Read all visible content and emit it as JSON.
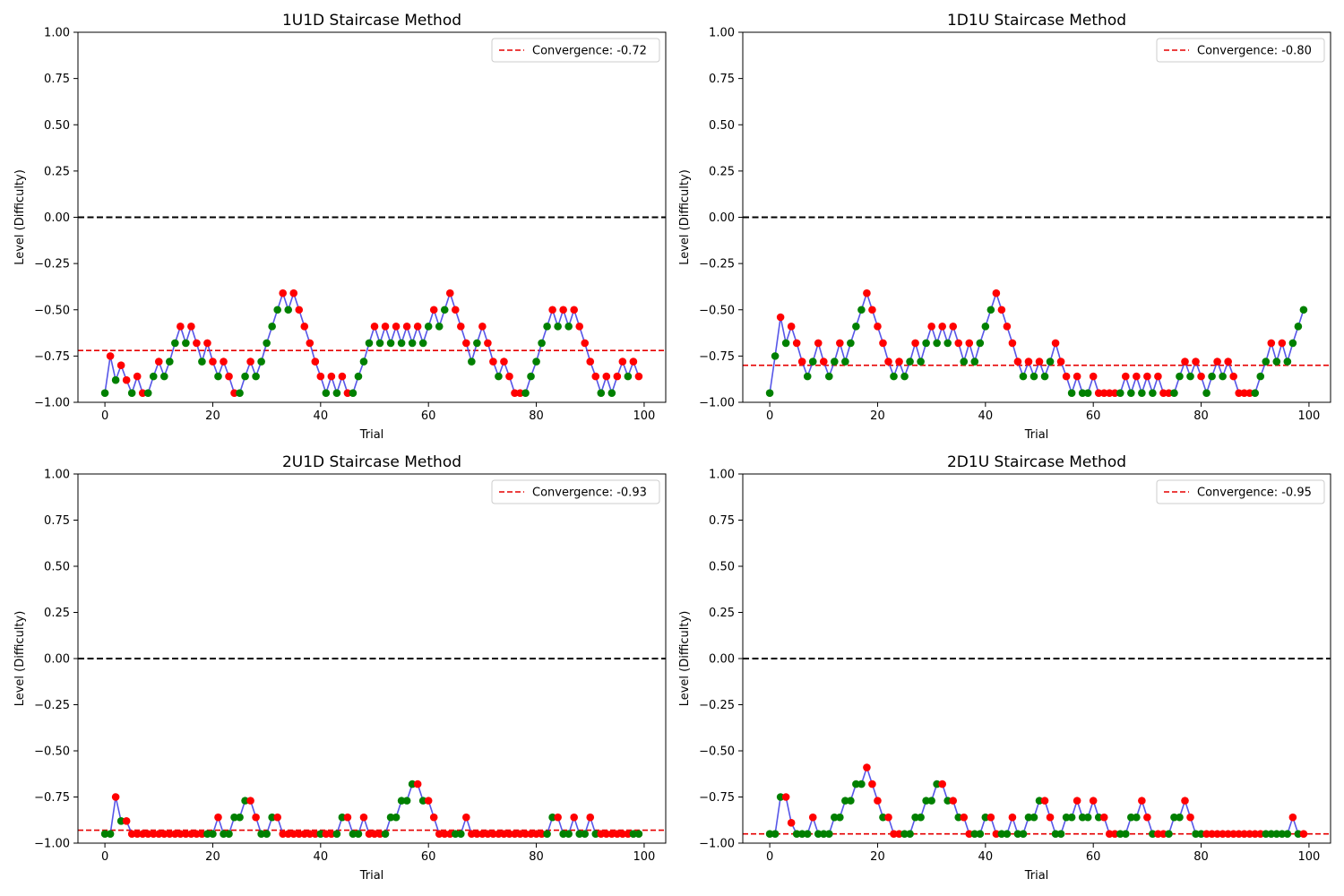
{
  "colors": {
    "line": "#4444e6",
    "correct": "#008000",
    "incorrect": "#ff0000",
    "convergence": "#e60000",
    "reference": "#000000"
  },
  "chart_data": [
    {
      "type": "line",
      "title": "1U1D Staircase Method",
      "xlabel": "Trial",
      "ylabel": "Level (Difficulty)",
      "xlim": [
        -5,
        104
      ],
      "ylim": [
        -1.0,
        1.0
      ],
      "xticks": [
        0,
        20,
        40,
        60,
        80,
        100
      ],
      "yticks": [
        -1.0,
        -0.75,
        -0.5,
        -0.25,
        0.0,
        0.25,
        0.5,
        0.75,
        1.0
      ],
      "reference_y": 0.0,
      "convergence": -0.72,
      "legend_label": "Convergence: -0.72",
      "legend_loc": "upper right",
      "y": [
        -0.95,
        -0.75,
        -0.88,
        -0.8,
        -0.88,
        -0.95,
        -0.86,
        -0.95,
        -0.95,
        -0.86,
        -0.78,
        -0.86,
        -0.78,
        -0.68,
        -0.59,
        -0.68,
        -0.59,
        -0.68,
        -0.78,
        -0.68,
        -0.78,
        -0.86,
        -0.78,
        -0.86,
        -0.95,
        -0.95,
        -0.86,
        -0.78,
        -0.86,
        -0.78,
        -0.68,
        -0.59,
        -0.5,
        -0.41,
        -0.5,
        -0.41,
        -0.5,
        -0.59,
        -0.68,
        -0.78,
        -0.86,
        -0.95,
        -0.86,
        -0.95,
        -0.86,
        -0.95,
        -0.95,
        -0.86,
        -0.78,
        -0.68,
        -0.59,
        -0.68,
        -0.59,
        -0.68,
        -0.59,
        -0.68,
        -0.59,
        -0.68,
        -0.59,
        -0.68,
        -0.59,
        -0.5,
        -0.59,
        -0.5,
        -0.41,
        -0.5,
        -0.59,
        -0.68,
        -0.78,
        -0.68,
        -0.59,
        -0.68,
        -0.78,
        -0.86,
        -0.78,
        -0.86,
        -0.95,
        -0.95,
        -0.95,
        -0.86,
        -0.78,
        -0.68,
        -0.59,
        -0.5,
        -0.59,
        -0.5,
        -0.59,
        -0.5,
        -0.59,
        -0.68,
        -0.78,
        -0.86,
        -0.95,
        -0.86,
        -0.95,
        -0.86,
        -0.78,
        -0.86,
        -0.78,
        -0.86
      ],
      "outcome": [
        "c",
        "i",
        "c",
        "i",
        "i",
        "c",
        "i",
        "i",
        "c",
        "c",
        "i",
        "c",
        "c",
        "c",
        "i",
        "c",
        "i",
        "i",
        "c",
        "i",
        "i",
        "c",
        "i",
        "i",
        "i",
        "c",
        "c",
        "i",
        "c",
        "c",
        "c",
        "c",
        "c",
        "i",
        "c",
        "i",
        "i",
        "i",
        "i",
        "i",
        "i",
        "c",
        "i",
        "c",
        "i",
        "i",
        "c",
        "c",
        "c",
        "c",
        "i",
        "c",
        "i",
        "c",
        "i",
        "c",
        "i",
        "c",
        "i",
        "c",
        "c",
        "i",
        "c",
        "c",
        "i",
        "i",
        "i",
        "i",
        "c",
        "c",
        "i",
        "i",
        "i",
        "c",
        "i",
        "i",
        "i",
        "i",
        "c",
        "c",
        "c",
        "c",
        "c",
        "i",
        "c",
        "i",
        "c",
        "i",
        "i",
        "i",
        "i",
        "i",
        "c",
        "i",
        "c",
        "i",
        "i",
        "c",
        "i",
        "i"
      ]
    },
    {
      "type": "line",
      "title": "1D1U Staircase Method",
      "xlabel": "Trial",
      "ylabel": "Level (Difficulty)",
      "xlim": [
        -5,
        104
      ],
      "ylim": [
        -1.0,
        1.0
      ],
      "xticks": [
        0,
        20,
        40,
        60,
        80,
        100
      ],
      "yticks": [
        -1.0,
        -0.75,
        -0.5,
        -0.25,
        0.0,
        0.25,
        0.5,
        0.75,
        1.0
      ],
      "reference_y": 0.0,
      "convergence": -0.8,
      "legend_label": "Convergence: -0.80",
      "legend_loc": "upper right",
      "y": [
        -0.95,
        -0.75,
        -0.54,
        -0.68,
        -0.59,
        -0.68,
        -0.78,
        -0.86,
        -0.78,
        -0.68,
        -0.78,
        -0.86,
        -0.78,
        -0.68,
        -0.78,
        -0.68,
        -0.59,
        -0.5,
        -0.41,
        -0.5,
        -0.59,
        -0.68,
        -0.78,
        -0.86,
        -0.78,
        -0.86,
        -0.78,
        -0.68,
        -0.78,
        -0.68,
        -0.59,
        -0.68,
        -0.59,
        -0.68,
        -0.59,
        -0.68,
        -0.78,
        -0.68,
        -0.78,
        -0.68,
        -0.59,
        -0.5,
        -0.41,
        -0.5,
        -0.59,
        -0.68,
        -0.78,
        -0.86,
        -0.78,
        -0.86,
        -0.78,
        -0.86,
        -0.78,
        -0.68,
        -0.78,
        -0.86,
        -0.95,
        -0.86,
        -0.95,
        -0.95,
        -0.86,
        -0.95,
        -0.95,
        -0.95,
        -0.95,
        -0.95,
        -0.86,
        -0.95,
        -0.86,
        -0.95,
        -0.86,
        -0.95,
        -0.86,
        -0.95,
        -0.95,
        -0.95,
        -0.86,
        -0.78,
        -0.86,
        -0.78,
        -0.86,
        -0.95,
        -0.86,
        -0.78,
        -0.86,
        -0.78,
        -0.86,
        -0.95,
        -0.95,
        -0.95,
        -0.95,
        -0.86,
        -0.78,
        -0.68,
        -0.78,
        -0.68,
        -0.78,
        -0.68,
        -0.59,
        -0.5
      ],
      "outcome": [
        "c",
        "c",
        "i",
        "c",
        "i",
        "i",
        "i",
        "c",
        "c",
        "i",
        "i",
        "c",
        "c",
        "i",
        "c",
        "c",
        "c",
        "c",
        "i",
        "i",
        "i",
        "i",
        "i",
        "c",
        "i",
        "c",
        "c",
        "i",
        "c",
        "c",
        "i",
        "c",
        "i",
        "c",
        "i",
        "i",
        "c",
        "i",
        "c",
        "c",
        "c",
        "c",
        "i",
        "i",
        "i",
        "i",
        "i",
        "c",
        "i",
        "c",
        "i",
        "c",
        "c",
        "i",
        "i",
        "i",
        "c",
        "i",
        "c",
        "c",
        "i",
        "i",
        "i",
        "i",
        "i",
        "c",
        "i",
        "c",
        "i",
        "c",
        "i",
        "c",
        "i",
        "i",
        "i",
        "c",
        "c",
        "i",
        "c",
        "i",
        "i",
        "c",
        "c",
        "i",
        "c",
        "i",
        "i",
        "i",
        "i",
        "i",
        "c",
        "c",
        "c",
        "i",
        "c",
        "i",
        "c",
        "c",
        "c",
        "c"
      ]
    },
    {
      "type": "line",
      "title": "2U1D Staircase Method",
      "xlabel": "Trial",
      "ylabel": "Level (Difficulty)",
      "xlim": [
        -5,
        104
      ],
      "ylim": [
        -1.0,
        1.0
      ],
      "xticks": [
        0,
        20,
        40,
        60,
        80,
        100
      ],
      "yticks": [
        -1.0,
        -0.75,
        -0.5,
        -0.25,
        0.0,
        0.25,
        0.5,
        0.75,
        1.0
      ],
      "reference_y": 0.0,
      "convergence": -0.93,
      "legend_label": "Convergence: -0.93",
      "legend_loc": "upper right",
      "y": [
        -0.95,
        -0.95,
        -0.75,
        -0.88,
        -0.88,
        -0.95,
        -0.95,
        -0.95,
        -0.95,
        -0.95,
        -0.95,
        -0.95,
        -0.95,
        -0.95,
        -0.95,
        -0.95,
        -0.95,
        -0.95,
        -0.95,
        -0.95,
        -0.95,
        -0.86,
        -0.95,
        -0.95,
        -0.86,
        -0.86,
        -0.77,
        -0.77,
        -0.86,
        -0.95,
        -0.95,
        -0.86,
        -0.86,
        -0.95,
        -0.95,
        -0.95,
        -0.95,
        -0.95,
        -0.95,
        -0.95,
        -0.95,
        -0.95,
        -0.95,
        -0.95,
        -0.86,
        -0.86,
        -0.95,
        -0.95,
        -0.86,
        -0.95,
        -0.95,
        -0.95,
        -0.95,
        -0.86,
        -0.86,
        -0.77,
        -0.77,
        -0.68,
        -0.68,
        -0.77,
        -0.77,
        -0.86,
        -0.95,
        -0.95,
        -0.95,
        -0.95,
        -0.95,
        -0.86,
        -0.95,
        -0.95,
        -0.95,
        -0.95,
        -0.95,
        -0.95,
        -0.95,
        -0.95,
        -0.95,
        -0.95,
        -0.95,
        -0.95,
        -0.95,
        -0.95,
        -0.95,
        -0.86,
        -0.86,
        -0.95,
        -0.95,
        -0.86,
        -0.95,
        -0.95,
        -0.86,
        -0.95,
        -0.95,
        -0.95,
        -0.95,
        -0.95,
        -0.95,
        -0.95,
        -0.95,
        -0.95
      ],
      "outcome": [
        "c",
        "c",
        "i",
        "c",
        "i",
        "i",
        "i",
        "i",
        "i",
        "i",
        "i",
        "i",
        "i",
        "i",
        "i",
        "i",
        "i",
        "i",
        "i",
        "c",
        "c",
        "i",
        "c",
        "c",
        "c",
        "c",
        "c",
        "i",
        "i",
        "c",
        "c",
        "c",
        "i",
        "i",
        "i",
        "i",
        "i",
        "i",
        "i",
        "i",
        "c",
        "i",
        "i",
        "c",
        "c",
        "i",
        "c",
        "c",
        "i",
        "i",
        "i",
        "i",
        "c",
        "c",
        "c",
        "c",
        "c",
        "c",
        "i",
        "c",
        "i",
        "i",
        "i",
        "i",
        "i",
        "c",
        "c",
        "i",
        "i",
        "i",
        "i",
        "i",
        "i",
        "i",
        "i",
        "i",
        "i",
        "i",
        "i",
        "i",
        "i",
        "i",
        "c",
        "c",
        "i",
        "c",
        "c",
        "i",
        "c",
        "c",
        "i",
        "c",
        "i",
        "i",
        "i",
        "i",
        "i",
        "i",
        "c",
        "c"
      ]
    },
    {
      "type": "line",
      "title": "2D1U Staircase Method",
      "xlabel": "Trial",
      "ylabel": "Level (Difficulty)",
      "xlim": [
        -5,
        104
      ],
      "ylim": [
        -1.0,
        1.0
      ],
      "xticks": [
        0,
        20,
        40,
        60,
        80,
        100
      ],
      "yticks": [
        -1.0,
        -0.75,
        -0.5,
        -0.25,
        0.0,
        0.25,
        0.5,
        0.75,
        1.0
      ],
      "reference_y": 0.0,
      "convergence": -0.95,
      "legend_label": "Convergence: -0.95",
      "legend_loc": "upper right",
      "y": [
        -0.95,
        -0.95,
        -0.75,
        -0.75,
        -0.89,
        -0.95,
        -0.95,
        -0.95,
        -0.86,
        -0.95,
        -0.95,
        -0.95,
        -0.86,
        -0.86,
        -0.77,
        -0.77,
        -0.68,
        -0.68,
        -0.59,
        -0.68,
        -0.77,
        -0.86,
        -0.86,
        -0.95,
        -0.95,
        -0.95,
        -0.95,
        -0.86,
        -0.86,
        -0.77,
        -0.77,
        -0.68,
        -0.68,
        -0.77,
        -0.77,
        -0.86,
        -0.86,
        -0.95,
        -0.95,
        -0.95,
        -0.86,
        -0.86,
        -0.95,
        -0.95,
        -0.95,
        -0.86,
        -0.95,
        -0.95,
        -0.86,
        -0.86,
        -0.77,
        -0.77,
        -0.86,
        -0.95,
        -0.95,
        -0.86,
        -0.86,
        -0.77,
        -0.86,
        -0.86,
        -0.77,
        -0.86,
        -0.86,
        -0.95,
        -0.95,
        -0.95,
        -0.95,
        -0.86,
        -0.86,
        -0.77,
        -0.86,
        -0.95,
        -0.95,
        -0.95,
        -0.95,
        -0.86,
        -0.86,
        -0.77,
        -0.86,
        -0.95,
        -0.95,
        -0.95,
        -0.95,
        -0.95,
        -0.95,
        -0.95,
        -0.95,
        -0.95,
        -0.95,
        -0.95,
        -0.95,
        -0.95,
        -0.95,
        -0.95,
        -0.95,
        -0.95,
        -0.95,
        -0.86,
        -0.95,
        -0.95
      ],
      "outcome": [
        "c",
        "c",
        "c",
        "i",
        "i",
        "c",
        "c",
        "c",
        "i",
        "c",
        "c",
        "c",
        "c",
        "c",
        "c",
        "c",
        "c",
        "c",
        "i",
        "i",
        "i",
        "c",
        "i",
        "i",
        "i",
        "c",
        "c",
        "c",
        "c",
        "c",
        "c",
        "c",
        "i",
        "c",
        "i",
        "c",
        "i",
        "i",
        "c",
        "c",
        "c",
        "i",
        "i",
        "c",
        "c",
        "i",
        "c",
        "c",
        "c",
        "c",
        "c",
        "i",
        "i",
        "c",
        "c",
        "c",
        "c",
        "i",
        "c",
        "c",
        "i",
        "c",
        "i",
        "i",
        "i",
        "c",
        "c",
        "c",
        "c",
        "i",
        "i",
        "c",
        "i",
        "i",
        "c",
        "c",
        "c",
        "i",
        "i",
        "c",
        "c",
        "i",
        "i",
        "i",
        "i",
        "i",
        "i",
        "i",
        "i",
        "i",
        "i",
        "i",
        "c",
        "c",
        "c",
        "c",
        "c",
        "i",
        "c",
        "i"
      ]
    }
  ]
}
